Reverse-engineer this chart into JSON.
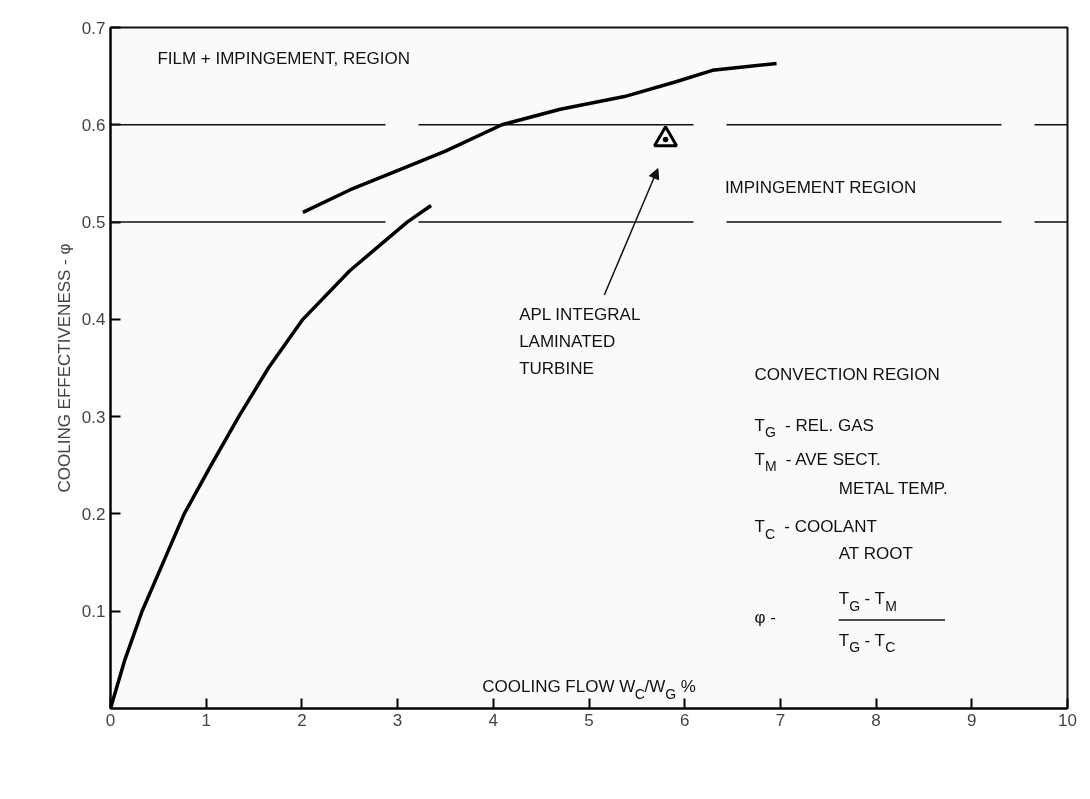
{
  "chart_data": {
    "type": "line",
    "xlabel": "COOLING FLOW W$_{C}$/W$_{G}$ %",
    "ylabel": "COOLING EFFECTIVENESS - φ",
    "xlim": [
      0,
      10
    ],
    "ylim": [
      0,
      0.7
    ],
    "xticks": [
      0,
      1,
      2,
      3,
      4,
      5,
      6,
      7,
      8,
      9,
      10
    ],
    "yticks": [
      0.1,
      0.2,
      0.3,
      0.4,
      0.5,
      0.6,
      0.7
    ],
    "grid": false,
    "line_style": "solid",
    "series": [
      {
        "color": "#000000",
        "x": [
          0,
          0.15,
          0.33,
          0.55,
          0.77,
          1.05,
          1.34,
          1.65,
          2.01,
          2.5,
          3.1,
          3.35
        ],
        "values": [
          0,
          0.05,
          0.1,
          0.15,
          0.2,
          0.25,
          0.3,
          0.35,
          0.4,
          0.45,
          0.5,
          0.517
        ]
      },
      {
        "color": "#000000",
        "x": [
          2.01,
          2.5,
          3.05,
          3.5,
          4.09,
          4.7,
          5.37,
          5.9,
          6.29,
          6.96
        ],
        "values": [
          0.51,
          0.533,
          0.555,
          0.573,
          0.6,
          0.616,
          0.629,
          0.644,
          0.656,
          0.663
        ]
      },
      {
        "type": "scatter",
        "marker": "triangle",
        "color": "#000000",
        "x": [
          5.8
        ],
        "values": [
          0.585
        ]
      }
    ],
    "ref_lines": [
      {
        "axis": "y",
        "value": 0.5,
        "line_style": "dashed"
      },
      {
        "axis": "y",
        "value": 0.6,
        "line_style": "dashed"
      }
    ],
    "annotations": [
      "FILM + IMPINGEMENT, REGION",
      "IMPINGEMENT REGION",
      "APL INTEGRAL\nLAMINATED\nTURBINE",
      "CONVECTION REGION",
      "T$_{G}$  -  REL. GAS",
      "T$_{M}$  -  AVE SECT.",
      "METAL TEMP.",
      "T$_{C}$  -  COOLANT",
      "AT ROOT",
      "φ       -",
      "T$_{G}$ - T$_{M}$",
      "T$_{G}$ - T$_{C}$"
    ]
  }
}
